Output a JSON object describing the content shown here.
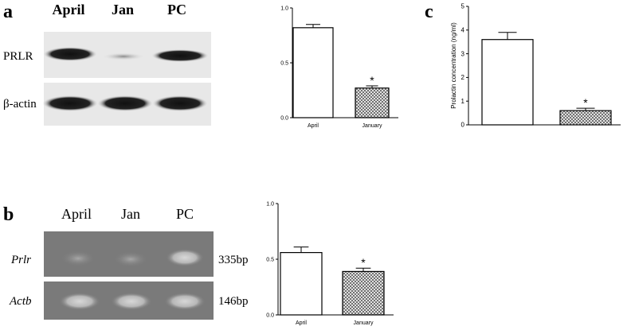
{
  "panel_labels": [
    "a",
    "b",
    "c"
  ],
  "blot_a": {
    "lanes": [
      "April",
      "Jan",
      "PC"
    ],
    "rows": [
      "PRLR",
      "β-actin"
    ]
  },
  "blot_b": {
    "lanes": [
      "April",
      "Jan",
      "PC"
    ],
    "rows": [
      "Prlr",
      "Actb"
    ],
    "sizes": [
      "335bp",
      "146bp"
    ]
  },
  "chart_data": [
    {
      "type": "bar",
      "categories": [
        "April",
        "January"
      ],
      "values": [
        0.82,
        0.27
      ],
      "errors": [
        0.03,
        0.02
      ],
      "significance": [
        null,
        "*"
      ],
      "patterns": [
        "none",
        "crosshatch"
      ],
      "ylim": [
        0,
        1
      ],
      "yticks": [
        {
          "value": 0,
          "label": "0.0"
        },
        {
          "value": 0.5,
          "label": "0.5"
        },
        {
          "value": 1,
          "label": "1.0"
        }
      ]
    },
    {
      "type": "bar",
      "categories": [
        null,
        null
      ],
      "values": [
        3.6,
        0.6
      ],
      "errors": [
        0.3,
        0.1
      ],
      "significance": [
        null,
        "*"
      ],
      "patterns": [
        "none",
        "crosshatch"
      ],
      "y_label": "Prolactin concentration (ng/ml)",
      "ylim": [
        0,
        5
      ],
      "yticks": [
        0,
        1,
        2,
        3,
        4,
        5
      ]
    },
    {
      "type": "bar",
      "categories": [
        "April",
        "January"
      ],
      "values": [
        0.56,
        0.39
      ],
      "errors": [
        0.05,
        0.03
      ],
      "significance": [
        null,
        "*"
      ],
      "patterns": [
        "none",
        "crosshatch"
      ],
      "ylim": [
        0,
        1
      ],
      "yticks": [
        {
          "value": 0,
          "label": "0.0"
        },
        {
          "value": 0.5,
          "label": "0.5"
        },
        {
          "value": 1,
          "label": "1.0"
        }
      ]
    }
  ]
}
